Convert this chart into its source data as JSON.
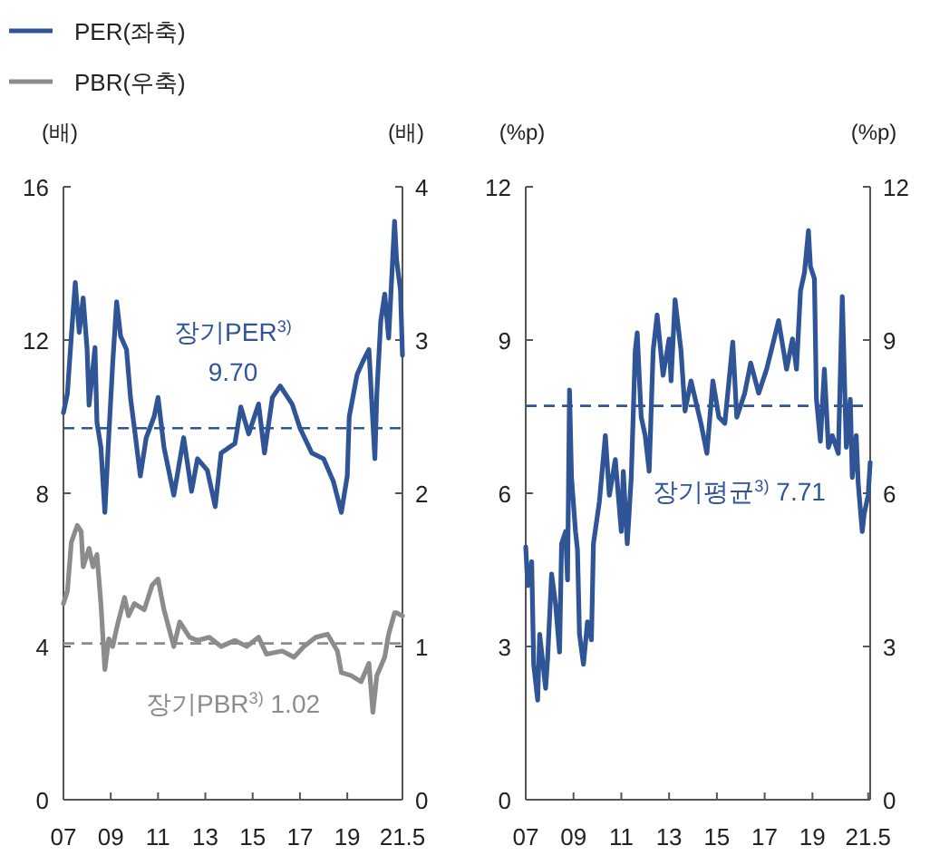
{
  "chart_data": [
    {
      "type": "line",
      "ylabel": "(배)",
      "y2label": "(배)",
      "legend": "top left",
      "line_style": "solid",
      "marker": "none",
      "grid": false,
      "xlim": [
        "2007-01",
        "2021-05"
      ],
      "xticks": [
        {
          "value": "2007-01",
          "label": "07"
        },
        {
          "value": "2009-01",
          "label": "09"
        },
        {
          "value": "2011-01",
          "label": "11"
        },
        {
          "value": "2013-01",
          "label": "13"
        },
        {
          "value": "2015-01",
          "label": "15"
        },
        {
          "value": "2017-01",
          "label": "17"
        },
        {
          "value": "2019-01",
          "label": "19"
        },
        {
          "value": "2021-05",
          "label": "21.5"
        }
      ],
      "ylim": [
        0,
        16
      ],
      "yticks": [
        0,
        4,
        8,
        12,
        16
      ],
      "y2lim": [
        0,
        4
      ],
      "y2ticks": [
        0,
        1,
        2,
        3,
        4
      ],
      "series": [
        {
          "name": "PER(좌축)",
          "color": "#2f5597",
          "x": [
            "2007-01",
            "2007-03",
            "2007-05",
            "2007-07",
            "2007-09",
            "2007-11",
            "2008-01",
            "2008-02",
            "2008-05",
            "2008-06",
            "2008-08",
            "2008-10",
            "2008-12",
            "2009-02",
            "2009-04",
            "2009-06",
            "2009-09",
            "2009-11",
            "2010-01",
            "2010-04",
            "2010-07",
            "2010-11",
            "2011-01",
            "2011-04",
            "2011-09",
            "2012-02",
            "2012-06",
            "2012-09",
            "2013-02",
            "2013-06",
            "2013-09",
            "2014-04",
            "2014-07",
            "2014-11",
            "2015-04",
            "2015-07",
            "2015-11",
            "2016-03",
            "2016-09",
            "2017-01",
            "2017-07",
            "2018-01",
            "2018-06",
            "2018-10",
            "2019-01",
            "2019-02",
            "2019-06",
            "2019-09",
            "2019-12",
            "2020-02",
            "2020-03",
            "2020-04",
            "2020-06",
            "2020-08",
            "2020-10",
            "2021-01",
            "2021-02",
            "2021-04",
            "2021-05"
          ],
          "values": [
            10.1,
            10.6,
            12.1,
            13.5,
            12.2,
            13.1,
            11.75,
            10.3,
            11.8,
            9.85,
            9.2,
            7.5,
            9.5,
            11.4,
            13.0,
            12.1,
            11.75,
            10.5,
            9.7,
            8.45,
            9.45,
            10.0,
            10.5,
            9.2,
            7.95,
            9.45,
            8.05,
            8.9,
            8.6,
            7.65,
            9.05,
            9.3,
            10.25,
            9.55,
            10.33,
            9.05,
            10.5,
            10.8,
            10.33,
            9.7,
            9.05,
            8.9,
            8.3,
            7.5,
            8.45,
            10.0,
            11.1,
            11.45,
            11.75,
            9.85,
            8.9,
            10.6,
            12.5,
            13.2,
            12.05,
            15.1,
            14.1,
            13.3,
            11.6
          ]
        },
        {
          "name": "PBR(우축)",
          "color": "#8c8c8c",
          "axis": "y2",
          "x": [
            "2007-01",
            "2007-03",
            "2007-05",
            "2007-08",
            "2007-10",
            "2007-11",
            "2008-02",
            "2008-04",
            "2008-06",
            "2008-08",
            "2008-10",
            "2008-12",
            "2009-02",
            "2009-04",
            "2009-08",
            "2009-10",
            "2010-01",
            "2010-06",
            "2010-10",
            "2011-01",
            "2011-04",
            "2011-09",
            "2011-12",
            "2012-05",
            "2012-09",
            "2013-03",
            "2013-09",
            "2014-04",
            "2014-10",
            "2015-04",
            "2015-08",
            "2016-04",
            "2016-10",
            "2017-03",
            "2017-09",
            "2018-03",
            "2018-08",
            "2018-10",
            "2019-03",
            "2019-08",
            "2019-12",
            "2020-02",
            "2020-04",
            "2020-08",
            "2020-10",
            "2021-01",
            "2021-02",
            "2021-05"
          ],
          "values": [
            1.28,
            1.36,
            1.68,
            1.79,
            1.75,
            1.52,
            1.64,
            1.52,
            1.6,
            1.28,
            0.85,
            1.05,
            1.0,
            1.12,
            1.32,
            1.2,
            1.28,
            1.24,
            1.4,
            1.44,
            1.24,
            1.0,
            1.16,
            1.06,
            1.04,
            1.06,
            1.0,
            1.04,
            1.0,
            1.06,
            0.95,
            0.97,
            0.93,
            1.0,
            1.06,
            1.08,
            0.97,
            0.83,
            0.81,
            0.77,
            0.89,
            0.57,
            0.81,
            0.93,
            1.08,
            1.22,
            1.22,
            1.2
          ]
        }
      ],
      "ref_lines": [
        {
          "axis": "y",
          "value": 9.7,
          "label": "장기PER$^{3)}$\n9.70",
          "color": "#2f5597",
          "line_style": "dashed"
        },
        {
          "axis": "y2",
          "value": 1.02,
          "label": "장기PBR$^{3)}$ 1.02",
          "color": "#8c8c8c",
          "line_style": "dashed"
        }
      ]
    },
    {
      "type": "line",
      "ylabel": "(%p)",
      "y2label": "(%p)",
      "line_style": "solid",
      "marker": "none",
      "grid": false,
      "xlim": [
        "2007-01",
        "2021-06"
      ],
      "xticks": [
        {
          "value": "2007-01",
          "label": "07"
        },
        {
          "value": "2009-01",
          "label": "09"
        },
        {
          "value": "2011-01",
          "label": "11"
        },
        {
          "value": "2013-01",
          "label": "13"
        },
        {
          "value": "2015-01",
          "label": "15"
        },
        {
          "value": "2017-01",
          "label": "17"
        },
        {
          "value": "2019-01",
          "label": "19"
        },
        {
          "value": "2021-05",
          "label": "21.5"
        }
      ],
      "ylim": [
        0,
        12
      ],
      "yticks": [
        0,
        3,
        6,
        9,
        12
      ],
      "y2lim": [
        0,
        12
      ],
      "y2ticks": [
        0,
        3,
        6,
        9,
        12
      ],
      "series": [
        {
          "color": "#2f5597",
          "x": [
            "2007-01",
            "2007-02",
            "2007-04",
            "2007-05",
            "2007-07",
            "2007-08",
            "2007-11",
            "2007-12",
            "2008-02",
            "2008-04",
            "2008-06",
            "2008-07",
            "2008-09",
            "2008-10",
            "2008-11",
            "2008-12",
            "2009-02",
            "2009-03",
            "2009-04",
            "2009-06",
            "2009-08",
            "2009-10",
            "2009-11",
            "2010-02",
            "2010-05",
            "2010-07",
            "2010-10",
            "2011-01",
            "2011-02",
            "2011-04",
            "2011-06",
            "2011-08",
            "2011-09",
            "2011-11",
            "2012-01",
            "2012-03",
            "2012-05",
            "2012-07",
            "2012-10",
            "2013-01",
            "2013-02",
            "2013-04",
            "2013-07",
            "2013-09",
            "2013-12",
            "2014-05",
            "2014-08",
            "2014-11",
            "2015-02",
            "2015-05",
            "2015-09",
            "2015-11",
            "2016-03",
            "2016-06",
            "2016-10",
            "2017-02",
            "2017-05",
            "2017-08",
            "2017-12",
            "2018-03",
            "2018-05",
            "2018-07",
            "2018-09",
            "2018-11",
            "2018-12",
            "2019-02",
            "2019-03",
            "2019-05",
            "2019-07",
            "2019-09",
            "2019-11",
            "2020-02",
            "2020-04",
            "2020-06",
            "2020-08",
            "2020-09",
            "2020-11",
            "2020-12",
            "2021-02",
            "2021-03",
            "2021-05",
            "2021-06"
          ],
          "values": [
            4.95,
            4.19,
            4.66,
            2.65,
            1.95,
            3.24,
            2.18,
            2.77,
            4.42,
            3.83,
            2.89,
            5.01,
            5.25,
            4.3,
            8.02,
            6.31,
            5.25,
            4.89,
            3.24,
            2.65,
            3.48,
            3.13,
            5.01,
            5.84,
            7.13,
            5.96,
            6.66,
            5.25,
            6.43,
            5.01,
            6.31,
            8.79,
            9.14,
            7.49,
            7.13,
            6.43,
            8.79,
            9.49,
            8.31,
            9.02,
            8.2,
            9.79,
            8.79,
            7.61,
            8.2,
            7.37,
            6.78,
            8.2,
            7.49,
            7.37,
            8.96,
            7.49,
            7.96,
            8.55,
            7.96,
            8.43,
            8.9,
            9.38,
            8.43,
            9.02,
            8.43,
            9.96,
            10.32,
            11.14,
            10.44,
            10.2,
            7.84,
            7.02,
            8.43,
            6.9,
            7.13,
            6.78,
            9.85,
            6.9,
            7.84,
            6.31,
            7.13,
            6.19,
            5.25,
            5.6,
            5.96,
            6.6
          ]
        }
      ],
      "ref_lines": [
        {
          "axis": "y",
          "value": 7.71,
          "label": "장기평균$^{3)}$ 7.71",
          "color": "#2f5597",
          "line_style": "dashed"
        }
      ]
    }
  ]
}
